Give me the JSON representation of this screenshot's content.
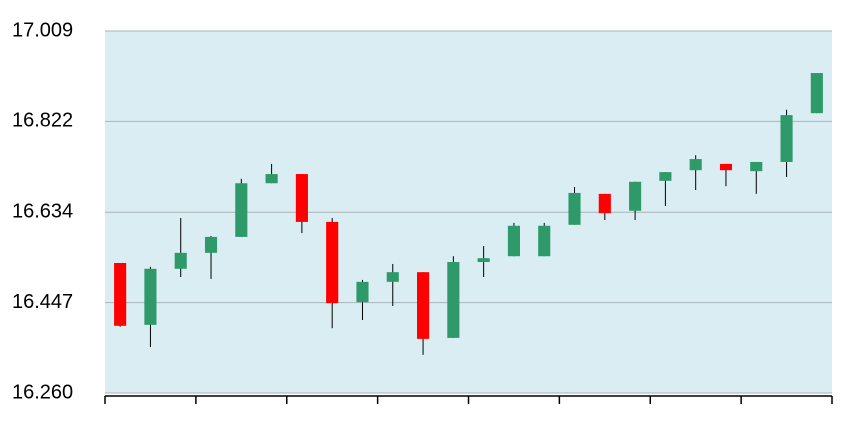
{
  "chart_data": {
    "type": "candlestick",
    "categories": [
      null,
      null,
      null,
      null,
      null,
      null,
      null,
      null,
      null,
      null,
      null,
      null,
      null,
      null,
      null,
      null,
      null,
      null,
      null,
      null,
      null,
      null,
      null,
      null
    ],
    "series": [
      {
        "up_color": "#2e9a6a",
        "down_color": "#ff0000",
        "open": [
          16.529,
          16.401,
          16.517,
          16.55,
          16.583,
          16.694,
          16.713,
          16.614,
          16.448,
          16.49,
          16.51,
          16.374,
          16.531,
          16.543,
          16.543,
          16.608,
          16.672,
          16.637,
          16.699,
          16.721,
          16.734,
          16.719,
          16.738,
          16.839
        ],
        "high": [
          16.529,
          16.521,
          16.622,
          16.585,
          16.703,
          16.734,
          16.713,
          16.622,
          16.494,
          16.527,
          16.51,
          16.543,
          16.564,
          16.612,
          16.612,
          16.686,
          16.672,
          16.697,
          16.717,
          16.752,
          16.734,
          16.738,
          16.846,
          16.922
        ],
        "low": [
          16.397,
          16.355,
          16.5,
          16.496,
          16.583,
          16.694,
          16.591,
          16.394,
          16.411,
          16.44,
          16.339,
          16.374,
          16.5,
          16.543,
          16.543,
          16.608,
          16.618,
          16.618,
          16.647,
          16.68,
          16.688,
          16.672,
          16.707,
          16.839
        ],
        "close": [
          16.399,
          16.517,
          16.55,
          16.583,
          16.694,
          16.713,
          16.614,
          16.446,
          16.49,
          16.51,
          16.372,
          16.531,
          16.539,
          16.606,
          16.606,
          16.674,
          16.632,
          16.697,
          16.717,
          16.744,
          16.721,
          16.738,
          16.835,
          16.922
        ]
      }
    ],
    "ylim": [
      16.26,
      17.009
    ],
    "yticks": [
      {
        "value": 16.26,
        "label": "16.260"
      },
      16.447,
      16.634,
      16.822,
      17.009
    ],
    "grid": true,
    "background": "#daedf3"
  }
}
